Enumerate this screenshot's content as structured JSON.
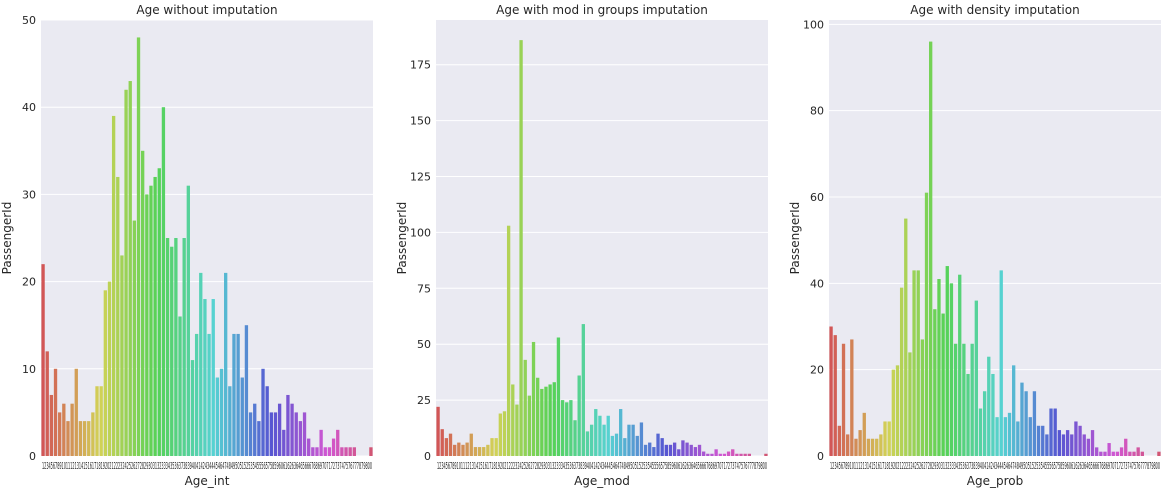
{
  "chart_data": [
    {
      "type": "bar",
      "title": "Age without imputation",
      "xlabel": "Age_int",
      "ylabel": "PassengerId",
      "ylim": [
        0,
        50
      ],
      "yticks": [
        0,
        10,
        20,
        30,
        40,
        50
      ],
      "grid": true,
      "categories": [
        "1",
        "2",
        "3",
        "4",
        "5",
        "6",
        "7",
        "8",
        "9",
        "10",
        "11",
        "12",
        "13",
        "14",
        "15",
        "16",
        "17",
        "18",
        "19",
        "20",
        "21",
        "22",
        "23",
        "24",
        "25",
        "26",
        "27",
        "28",
        "29",
        "30",
        "31",
        "32",
        "33",
        "34",
        "35",
        "36",
        "37",
        "38",
        "39",
        "40",
        "41",
        "42",
        "43",
        "44",
        "45",
        "46",
        "47",
        "48",
        "49",
        "50",
        "51",
        "52",
        "53",
        "54",
        "55",
        "56",
        "57",
        "58",
        "59",
        "60",
        "61",
        "62",
        "63",
        "64",
        "65",
        "66",
        "67",
        "68",
        "69",
        "70",
        "71",
        "72",
        "73",
        "74",
        "75",
        "76",
        "77",
        "78",
        "79",
        "80"
      ],
      "values": [
        22,
        12,
        7,
        10,
        5,
        6,
        4,
        6,
        10,
        4,
        4,
        4,
        5,
        8,
        8,
        19,
        20,
        39,
        32,
        23,
        42,
        43,
        27,
        48,
        35,
        30,
        31,
        32,
        33,
        40,
        25,
        24,
        25,
        16,
        25,
        31,
        11,
        14,
        21,
        18,
        14,
        18,
        9,
        10,
        21,
        8,
        14,
        14,
        9,
        15,
        5,
        6,
        4,
        10,
        8,
        5,
        5,
        6,
        3,
        7,
        6,
        5,
        4,
        5,
        2,
        1,
        1,
        3,
        1,
        1,
        2,
        3,
        1,
        1,
        1,
        1,
        0,
        0,
        0,
        1
      ],
      "tick_labels_text": "12345678910111213141516171819202122232425262728293031323334353637383940414243444546474849505152535455565758596061626364656667686970717273747576777879800"
    },
    {
      "type": "bar",
      "title": "Age with mod in groups imputation",
      "xlabel": "Age_mod",
      "ylabel": "PassengerId",
      "ylim": [
        0,
        195
      ],
      "yticks": [
        0,
        25,
        50,
        75,
        100,
        125,
        150,
        175
      ],
      "grid": true,
      "categories": [
        "1",
        "2",
        "3",
        "4",
        "5",
        "6",
        "7",
        "8",
        "9",
        "10",
        "11",
        "12",
        "13",
        "14",
        "15",
        "16",
        "17",
        "18",
        "19",
        "20",
        "21",
        "22",
        "23",
        "24",
        "25",
        "26",
        "27",
        "28",
        "29",
        "30",
        "31",
        "32",
        "33",
        "34",
        "35",
        "36",
        "37",
        "38",
        "39",
        "40",
        "41",
        "42",
        "43",
        "44",
        "45",
        "46",
        "47",
        "48",
        "49",
        "50",
        "51",
        "52",
        "53",
        "54",
        "55",
        "56",
        "57",
        "58",
        "59",
        "60",
        "61",
        "62",
        "63",
        "64",
        "65",
        "66",
        "67",
        "68",
        "69",
        "70",
        "71",
        "72",
        "73",
        "74",
        "75",
        "76",
        "77",
        "78",
        "79",
        "80"
      ],
      "values": [
        22,
        12,
        8,
        10,
        5,
        6,
        5,
        6,
        10,
        4,
        4,
        4,
        5,
        8,
        8,
        19,
        20,
        103,
        32,
        23,
        186,
        43,
        27,
        51,
        35,
        30,
        31,
        32,
        33,
        53,
        25,
        24,
        25,
        16,
        36,
        59,
        11,
        14,
        21,
        18,
        14,
        18,
        9,
        10,
        21,
        8,
        14,
        14,
        9,
        15,
        5,
        6,
        4,
        10,
        8,
        5,
        5,
        6,
        3,
        7,
        6,
        5,
        4,
        5,
        2,
        1,
        1,
        3,
        1,
        1,
        2,
        3,
        1,
        1,
        1,
        1,
        0,
        0,
        0,
        1
      ],
      "tick_labels_text": "12345678910111213141516171819202122232425262728293031323334353637383940414243444546474849505152535455565758596061626364656667686970717273747576777879800"
    },
    {
      "type": "bar",
      "title": "Age with density imputation",
      "xlabel": "Age_prob",
      "ylabel": "PassengerId",
      "ylim": [
        0,
        101
      ],
      "yticks": [
        0,
        20,
        40,
        60,
        80,
        100
      ],
      "grid": true,
      "categories": [
        "1",
        "2",
        "3",
        "4",
        "5",
        "6",
        "7",
        "8",
        "9",
        "10",
        "11",
        "12",
        "13",
        "14",
        "15",
        "16",
        "17",
        "18",
        "19",
        "20",
        "21",
        "22",
        "23",
        "24",
        "25",
        "26",
        "27",
        "28",
        "29",
        "30",
        "31",
        "32",
        "33",
        "34",
        "35",
        "36",
        "37",
        "38",
        "39",
        "40",
        "41",
        "42",
        "43",
        "44",
        "45",
        "46",
        "47",
        "48",
        "49",
        "50",
        "51",
        "52",
        "53",
        "54",
        "55",
        "56",
        "57",
        "58",
        "59",
        "60",
        "61",
        "62",
        "63",
        "64",
        "65",
        "66",
        "67",
        "68",
        "69",
        "70",
        "71",
        "72",
        "73",
        "74",
        "75",
        "76",
        "77",
        "78",
        "79",
        "80"
      ],
      "values": [
        30,
        28,
        7,
        26,
        5,
        27,
        4,
        6,
        10,
        4,
        4,
        4,
        5,
        8,
        8,
        20,
        21,
        39,
        55,
        24,
        43,
        43,
        27,
        61,
        96,
        34,
        41,
        33,
        44,
        40,
        26,
        42,
        26,
        19,
        26,
        36,
        11,
        15,
        23,
        19,
        9,
        43,
        9,
        10,
        21,
        8,
        17,
        15,
        9,
        15,
        7,
        7,
        5,
        11,
        11,
        6,
        5,
        6,
        5,
        8,
        7,
        5,
        4,
        6,
        2,
        1,
        1,
        3,
        1,
        1,
        2,
        4,
        1,
        1,
        2,
        1,
        0,
        0,
        0,
        1
      ],
      "tick_labels_text": "12345678910111213141516171819202122232425262728293031323334353637383940414243444546474849505152535455565758596061626364656667686970717273747576777879800"
    }
  ]
}
